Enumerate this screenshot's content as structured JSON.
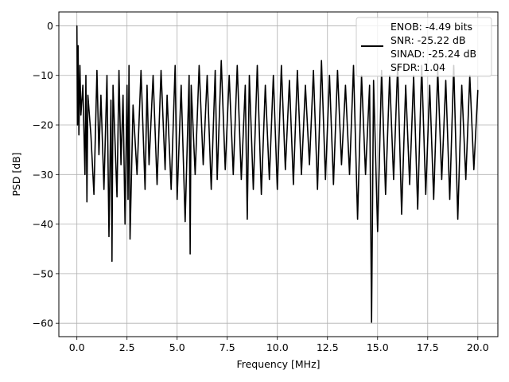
{
  "chart_data": {
    "type": "line",
    "xlabel": "Frequency [MHz]",
    "ylabel": "PSD [dB]",
    "xlim": [
      -0.9,
      21.0
    ],
    "ylim": [
      -62.7,
      2.8
    ],
    "xticks": [
      0.0,
      2.5,
      5.0,
      7.5,
      10.0,
      12.5,
      15.0,
      17.5,
      20.0
    ],
    "xtick_labels": [
      "0.0",
      "2.5",
      "5.0",
      "7.5",
      "10.0",
      "12.5",
      "15.0",
      "17.5",
      "20.0"
    ],
    "yticks": [
      0,
      -10,
      -20,
      -30,
      -40,
      -50,
      -60
    ],
    "ytick_labels": [
      "0",
      "−10",
      "−20",
      "−30",
      "−40",
      "−50",
      "−60"
    ],
    "grid": true,
    "legend_position": "upper-right",
    "series": [
      {
        "color": "#000000",
        "description": "dense noise floor roughly between -9 and -27 dB across 0-20 MHz with peak at 0 dB near DC",
        "x": [
          0.0,
          0.03,
          0.06,
          0.1,
          0.15,
          0.2,
          0.3,
          0.4,
          0.45,
          0.5,
          0.55,
          0.7,
          0.85,
          1.0,
          1.1,
          1.2,
          1.35,
          1.5,
          1.6,
          1.7,
          1.75,
          1.8,
          2.0,
          2.1,
          2.2,
          2.3,
          2.4,
          2.5,
          2.55,
          2.6,
          2.65,
          2.8,
          3.0,
          3.2,
          3.4,
          3.5,
          3.6,
          3.8,
          4.0,
          4.2,
          4.4,
          4.5,
          4.7,
          4.9,
          5.0,
          5.2,
          5.4,
          5.6,
          5.65,
          5.7,
          5.9,
          6.1,
          6.3,
          6.5,
          6.7,
          6.9,
          7.0,
          7.2,
          7.4,
          7.6,
          7.8,
          8.0,
          8.2,
          8.4,
          8.5,
          8.6,
          8.8,
          9.0,
          9.2,
          9.4,
          9.6,
          9.8,
          10.0,
          10.2,
          10.4,
          10.6,
          10.8,
          11.0,
          11.2,
          11.4,
          11.6,
          11.8,
          12.0,
          12.2,
          12.4,
          12.6,
          12.8,
          13.0,
          13.2,
          13.4,
          13.6,
          13.8,
          14.0,
          14.2,
          14.4,
          14.6,
          14.7,
          14.8,
          15.0,
          15.2,
          15.4,
          15.6,
          15.8,
          16.0,
          16.2,
          16.4,
          16.6,
          16.8,
          17.0,
          17.2,
          17.4,
          17.6,
          17.8,
          18.0,
          18.2,
          18.4,
          18.6,
          18.8,
          19.0,
          19.2,
          19.4,
          19.6,
          19.8,
          20.0
        ],
        "y": [
          0.0,
          -20.0,
          -4.0,
          -22.0,
          -8.0,
          -18.0,
          -12.0,
          -30.0,
          -10.0,
          -35.5,
          -14.0,
          -22.0,
          -34.0,
          -9.0,
          -26.0,
          -14.0,
          -33.0,
          -10.0,
          -42.5,
          -15.0,
          -47.5,
          -12.0,
          -34.5,
          -9.0,
          -28.0,
          -14.0,
          -40.0,
          -12.0,
          -35.0,
          -8.0,
          -43.0,
          -16.0,
          -30.0,
          -9.0,
          -33.0,
          -12.0,
          -28.0,
          -10.0,
          -32.0,
          -9.0,
          -29.0,
          -14.0,
          -33.0,
          -8.0,
          -35.0,
          -12.0,
          -39.5,
          -10.0,
          -46.0,
          -12.0,
          -30.0,
          -8.0,
          -28.0,
          -10.0,
          -33.0,
          -9.0,
          -31.0,
          -7.0,
          -29.0,
          -10.0,
          -30.0,
          -8.0,
          -31.0,
          -12.0,
          -39.0,
          -10.0,
          -33.0,
          -8.0,
          -34.0,
          -12.0,
          -31.0,
          -10.0,
          -33.0,
          -8.0,
          -29.0,
          -11.0,
          -32.0,
          -9.0,
          -30.0,
          -12.0,
          -28.0,
          -9.0,
          -33.0,
          -7.0,
          -31.0,
          -10.0,
          -32.0,
          -9.0,
          -28.0,
          -12.0,
          -30.0,
          -8.0,
          -39.0,
          -10.0,
          -30.0,
          -12.0,
          -59.8,
          -11.0,
          -41.5,
          -9.0,
          -34.0,
          -10.0,
          -31.0,
          -8.0,
          -38.0,
          -12.0,
          -32.0,
          -10.0,
          -37.0,
          -8.0,
          -34.0,
          -12.0,
          -35.0,
          -9.0,
          -31.0,
          -11.0,
          -35.0,
          -8.0,
          -39.0,
          -12.0,
          -31.0,
          -10.0,
          -29.0,
          -13.0
        ]
      }
    ],
    "legend_entries": [
      "ENOB: -4.49 bits",
      "SNR: -25.22 dB",
      "SINAD: -25.24 dB",
      "SFDR: 1.04"
    ]
  }
}
